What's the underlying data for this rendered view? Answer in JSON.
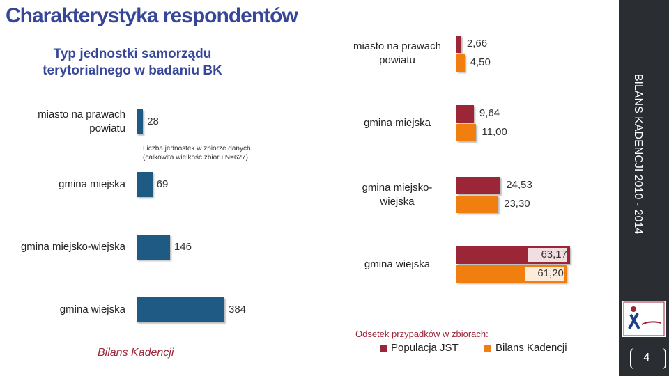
{
  "slide": {
    "title": "Charakterystyka respondentów",
    "sidebar": "BILANS KADENCJI 2010 - 2014",
    "page_number": "4",
    "footer": "Bilans Kadencji"
  },
  "chart_data": [
    {
      "type": "bar",
      "orientation": "horizontal",
      "title": "Typ jednostki samorządu terytorialnego w badaniu BK",
      "annotation": "Liczba jednostek w zbiorze danych (całkowita wielkość zbioru N=627)",
      "categories": [
        "miasto na prawach powiatu",
        "gmina miejska",
        "gmina miejsko-wiejska",
        "gmina wiejska"
      ],
      "values": [
        28,
        69,
        146,
        384
      ],
      "color": "#1f5a85"
    },
    {
      "type": "grouped_bar",
      "orientation": "horizontal",
      "legend_title": "Odsetek przypadków w zbiorach:",
      "categories": [
        "miasto na prawach powiatu",
        "gmina miejska",
        "gmina miejsko-wiejska",
        "gmina wiejska"
      ],
      "series": [
        {
          "name": "Populacja JST",
          "color": "#9b2638",
          "values": [
            2.66,
            9.64,
            24.53,
            63.17
          ],
          "value_labels": [
            "2,66",
            "9,64",
            "24,53",
            "63,17"
          ]
        },
        {
          "name": "Bilans Kadencji",
          "color": "#f07f0f",
          "values": [
            4.5,
            11.0,
            23.3,
            61.2
          ],
          "value_labels": [
            "4,50",
            "11,00",
            "23,30",
            "61,20"
          ]
        }
      ],
      "legend": "bottom"
    }
  ]
}
